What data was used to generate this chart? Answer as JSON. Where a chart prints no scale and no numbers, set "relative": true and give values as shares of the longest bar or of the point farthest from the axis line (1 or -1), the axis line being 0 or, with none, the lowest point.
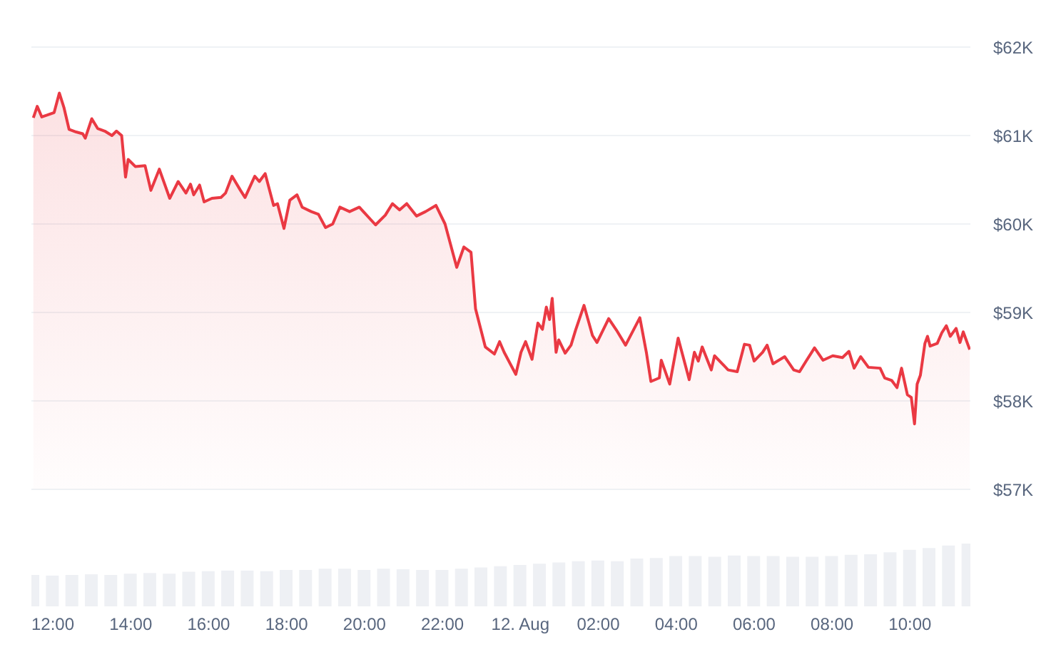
{
  "chart_data": [
    {
      "type": "area",
      "color": "#ea3943",
      "grid": "y",
      "tick_labels": "y",
      "xlim": [
        "--08-11T11:27",
        "--08-12T11:33"
      ],
      "ylim": [
        57000,
        62000
      ],
      "yticks": [
        {
          "value": 57000,
          "label": "$57K"
        },
        {
          "value": 58000,
          "label": "$58K"
        },
        {
          "value": 59000,
          "label": "$59K"
        },
        {
          "value": 60000,
          "label": "$60K"
        },
        {
          "value": 61000,
          "label": "$61K"
        },
        {
          "value": 62000,
          "label": "$62K"
        }
      ],
      "x": [
        "--08-11T11:30",
        "--08-11T11:36",
        "--08-11T11:43",
        "--08-11T11:51",
        "--08-11T12:02",
        "--08-11T12:10",
        "--08-11T12:17",
        "--08-11T12:25",
        "--08-11T12:36",
        "--08-11T12:46",
        "--08-11T12:50",
        "--08-11T13:00",
        "--08-11T13:09",
        "--08-11T13:20",
        "--08-11T13:31",
        "--08-11T13:38",
        "--08-11T13:46",
        "--08-11T13:52",
        "--08-11T13:56",
        "--08-11T14:07",
        "--08-11T14:22",
        "--08-11T14:31",
        "--08-11T14:44",
        "--08-11T15:00",
        "--08-11T15:13",
        "--08-11T15:25",
        "--08-11T15:32",
        "--08-11T15:37",
        "--08-11T15:46",
        "--08-11T15:53",
        "--08-11T16:05",
        "--08-11T16:19",
        "--08-11T16:26",
        "--08-11T16:36",
        "--08-11T16:49",
        "--08-11T16:56",
        "--08-11T17:11",
        "--08-11T17:18",
        "--08-11T17:27",
        "--08-11T17:40",
        "--08-11T17:46",
        "--08-11T17:56",
        "--08-11T18:05",
        "--08-11T18:16",
        "--08-11T18:24",
        "--08-11T18:38",
        "--08-11T18:49",
        "--08-11T19:00",
        "--08-11T19:11",
        "--08-11T19:22",
        "--08-11T19:37",
        "--08-11T19:52",
        "--08-11T20:17",
        "--08-11T20:32",
        "--08-11T20:43",
        "--08-11T20:54",
        "--08-11T21:05",
        "--08-11T21:20",
        "--08-11T21:34",
        "--08-11T21:50",
        "--08-11T22:04",
        "--08-11T22:22",
        "--08-11T22:33",
        "--08-11T22:44",
        "--08-11T22:51",
        "--08-11T23:06",
        "--08-11T23:20",
        "--08-11T23:28",
        "--08-11T23:35",
        "--08-11T23:53",
        "--08-12T00:01",
        "--08-12T00:08",
        "--08-12T00:18",
        "--08-12T00:27",
        "--08-12T00:34",
        "--08-12T00:40",
        "--08-12T00:45",
        "--08-12T00:49",
        "--08-12T00:55",
        "--08-12T00:59",
        "--08-12T01:09",
        "--08-12T01:18",
        "--08-12T01:25",
        "--08-12T01:38",
        "--08-12T01:51",
        "--08-12T01:58",
        "--08-12T02:16",
        "--08-12T02:28",
        "--08-12T02:42",
        "--08-12T03:04",
        "--08-12T03:14",
        "--08-12T03:21",
        "--08-12T03:34",
        "--08-12T03:37",
        "--08-12T03:50",
        "--08-12T04:03",
        "--08-12T04:20",
        "--08-12T04:28",
        "--08-12T04:34",
        "--08-12T04:40",
        "--08-12T04:54",
        "--08-12T04:59",
        "--08-12T05:20",
        "--08-12T05:34",
        "--08-12T05:45",
        "--08-12T05:53",
        "--08-12T06:00",
        "--08-12T06:13",
        "--08-12T06:20",
        "--08-12T06:29",
        "--08-12T06:47",
        "--08-12T07:01",
        "--08-12T07:10",
        "--08-12T07:20",
        "--08-12T07:33",
        "--08-12T07:46",
        "--08-12T08:01",
        "--08-12T08:16",
        "--08-12T08:26",
        "--08-12T08:34",
        "--08-12T08:44",
        "--08-12T08:56",
        "--08-12T09:14",
        "--08-12T09:21",
        "--08-12T09:32",
        "--08-12T09:40",
        "--08-12T09:47",
        "--08-12T09:56",
        "--08-12T10:02",
        "--08-12T10:07",
        "--08-12T10:11",
        "--08-12T10:16",
        "--08-12T10:23",
        "--08-12T10:27",
        "--08-12T10:31",
        "--08-12T10:42",
        "--08-12T10:49",
        "--08-12T10:56",
        "--08-12T11:02",
        "--08-12T11:11",
        "--08-12T11:17",
        "--08-12T11:22",
        "--08-12T11:32"
      ],
      "values": [
        61200,
        61330,
        61210,
        61230,
        61260,
        61480,
        61320,
        61070,
        61040,
        61020,
        60970,
        61190,
        61080,
        61050,
        61000,
        61050,
        61000,
        60530,
        60730,
        60650,
        60660,
        60380,
        60620,
        60290,
        60480,
        60350,
        60450,
        60330,
        60440,
        60250,
        60290,
        60300,
        60350,
        60540,
        60380,
        60300,
        60540,
        60480,
        60570,
        60210,
        60230,
        59950,
        60270,
        60330,
        60190,
        60140,
        60110,
        59960,
        60000,
        60190,
        60140,
        60190,
        59990,
        60100,
        60230,
        60160,
        60230,
        60090,
        60140,
        60210,
        60000,
        59510,
        59740,
        59680,
        59040,
        58610,
        58530,
        58670,
        58550,
        58300,
        58550,
        58670,
        58470,
        58880,
        58810,
        59060,
        58920,
        59160,
        58550,
        58690,
        58540,
        58630,
        58800,
        59080,
        58740,
        58660,
        58930,
        58800,
        58630,
        58940,
        58550,
        58220,
        58260,
        58460,
        58190,
        58710,
        58240,
        58550,
        58450,
        58610,
        58350,
        58510,
        58350,
        58330,
        58640,
        58630,
        58450,
        58550,
        58630,
        58420,
        58500,
        58350,
        58330,
        58450,
        58600,
        58460,
        58510,
        58490,
        58560,
        58370,
        58500,
        58380,
        58370,
        58260,
        58230,
        58150,
        58370,
        58070,
        58040,
        57740,
        58190,
        58290,
        58650,
        58730,
        58620,
        58650,
        58770,
        58850,
        58730,
        58820,
        58660,
        58780,
        58580
      ]
    },
    {
      "type": "bar",
      "color": "#eef0f4",
      "relative": true,
      "tick_labels": "x",
      "xlim": [
        "--08-11T11:27",
        "--08-12T11:33"
      ],
      "xticks": [
        {
          "value": "--08-11T12:00",
          "label": "12:00"
        },
        {
          "value": "--08-11T14:00",
          "label": "14:00"
        },
        {
          "value": "--08-11T16:00",
          "label": "16:00"
        },
        {
          "value": "--08-11T18:00",
          "label": "18:00"
        },
        {
          "value": "--08-11T20:00",
          "label": "20:00"
        },
        {
          "value": "--08-11T22:00",
          "label": "22:00"
        },
        {
          "value": "--08-12T00:00",
          "label": "12. Aug"
        },
        {
          "value": "--08-12T02:00",
          "label": "02:00"
        },
        {
          "value": "--08-12T04:00",
          "label": "04:00"
        },
        {
          "value": "--08-12T06:00",
          "label": "06:00"
        },
        {
          "value": "--08-12T08:00",
          "label": "08:00"
        },
        {
          "value": "--08-12T10:00",
          "label": "10:00"
        }
      ],
      "x": [
        "--08-11T11:30",
        "--08-11T12:00",
        "--08-11T12:30",
        "--08-11T13:00",
        "--08-11T13:30",
        "--08-11T14:00",
        "--08-11T14:30",
        "--08-11T15:00",
        "--08-11T15:30",
        "--08-11T16:00",
        "--08-11T16:30",
        "--08-11T17:00",
        "--08-11T17:30",
        "--08-11T18:00",
        "--08-11T18:30",
        "--08-11T19:00",
        "--08-11T19:30",
        "--08-11T20:00",
        "--08-11T20:30",
        "--08-11T21:00",
        "--08-11T21:30",
        "--08-11T22:00",
        "--08-11T22:30",
        "--08-11T23:00",
        "--08-11T23:30",
        "--08-12T00:00",
        "--08-12T00:30",
        "--08-12T01:00",
        "--08-12T01:30",
        "--08-12T02:00",
        "--08-12T02:30",
        "--08-12T03:00",
        "--08-12T03:30",
        "--08-12T04:00",
        "--08-12T04:30",
        "--08-12T05:00",
        "--08-12T05:30",
        "--08-12T06:00",
        "--08-12T06:30",
        "--08-12T07:00",
        "--08-12T07:30",
        "--08-12T08:00",
        "--08-12T08:30",
        "--08-12T09:00",
        "--08-12T09:30",
        "--08-12T10:00",
        "--08-12T10:30",
        "--08-12T11:00",
        "--08-12T11:30"
      ],
      "values": [
        0.5,
        0.49,
        0.5,
        0.51,
        0.5,
        0.52,
        0.53,
        0.52,
        0.55,
        0.56,
        0.57,
        0.57,
        0.56,
        0.58,
        0.58,
        0.6,
        0.6,
        0.58,
        0.6,
        0.59,
        0.58,
        0.58,
        0.6,
        0.62,
        0.64,
        0.66,
        0.68,
        0.7,
        0.72,
        0.73,
        0.72,
        0.76,
        0.77,
        0.8,
        0.8,
        0.79,
        0.81,
        0.8,
        0.8,
        0.79,
        0.79,
        0.8,
        0.82,
        0.83,
        0.86,
        0.9,
        0.93,
        0.97,
        1
      ]
    }
  ]
}
